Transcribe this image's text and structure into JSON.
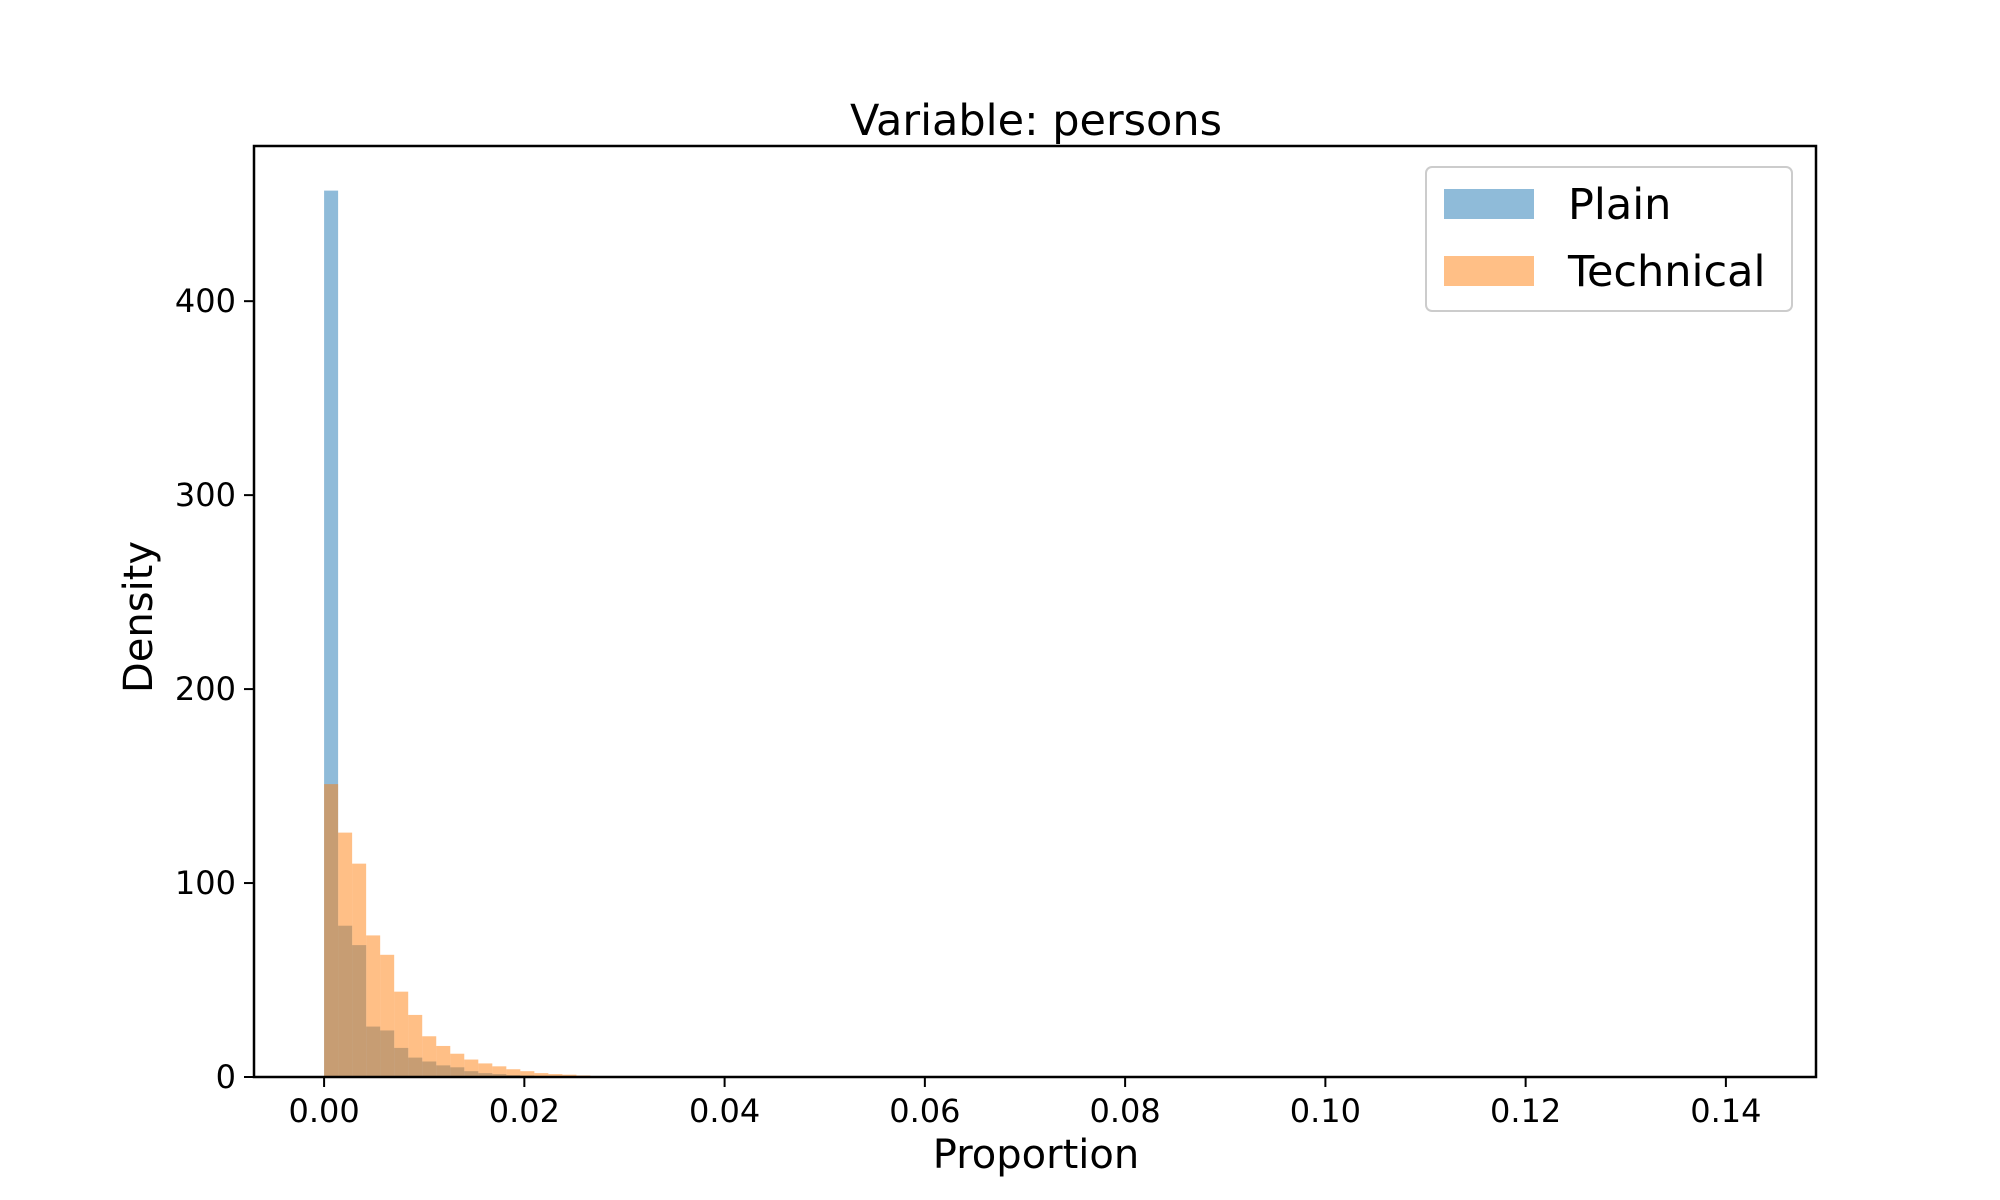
{
  "chart_data": {
    "type": "histogram",
    "title": "Variable: persons",
    "xlabel": "Proportion",
    "ylabel": "Density",
    "xlim": [
      -0.007,
      0.149
    ],
    "ylim": [
      0,
      480
    ],
    "xticks": [
      0.0,
      0.02,
      0.04,
      0.06,
      0.08,
      0.1,
      0.12,
      0.14
    ],
    "xtick_labels": [
      "0.00",
      "0.02",
      "0.04",
      "0.06",
      "0.08",
      "0.10",
      "0.12",
      "0.14"
    ],
    "yticks": [
      0,
      100,
      200,
      300,
      400
    ],
    "ytick_labels": [
      "0",
      "100",
      "200",
      "300",
      "400"
    ],
    "grid": false,
    "legend_position": "top-right",
    "bin_width": 0.0014,
    "bin_start": 0.0,
    "series": [
      {
        "name": "Plain",
        "color": "#1f77b4",
        "alpha": 0.5,
        "values": [
          457,
          78,
          68,
          26,
          24,
          15,
          10,
          8,
          6,
          5,
          3,
          2,
          1.5,
          1,
          0.8,
          0.5,
          0.3,
          0.2,
          0.1,
          0.1
        ]
      },
      {
        "name": "Technical",
        "color": "#ff7f0e",
        "alpha": 0.5,
        "values": [
          151,
          126,
          110,
          73,
          63,
          44,
          32,
          21,
          16,
          12,
          9,
          7,
          5.5,
          4,
          3,
          2,
          1.5,
          1.2,
          0.8,
          0.5
        ]
      }
    ]
  }
}
